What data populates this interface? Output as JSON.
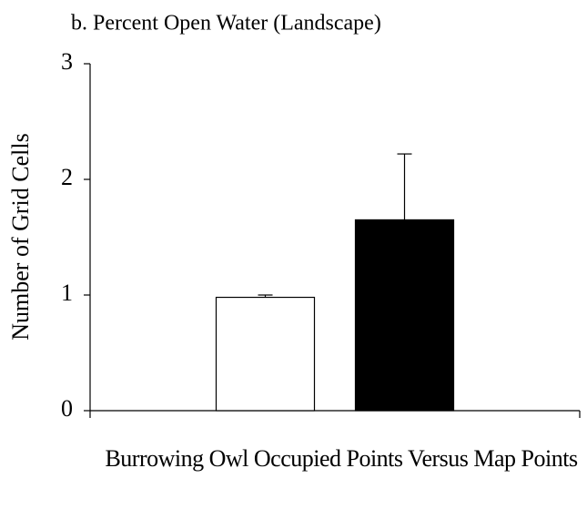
{
  "chart_data": {
    "type": "bar",
    "title": "b. Percent Open Water (Landscape)",
    "x_label": "Burrowing Owl Occupied Points Versus Map Points",
    "y_label": "Number of Grid Cells",
    "categories": [
      null,
      null
    ],
    "values": [
      0.98,
      1.65
    ],
    "errors": [
      0.02,
      0.57
    ],
    "colors": [
      "#ffffff",
      "#000000"
    ],
    "ylim": [
      0,
      3
    ],
    "yticks": [
      0,
      1,
      2,
      3
    ],
    "grid": false
  }
}
